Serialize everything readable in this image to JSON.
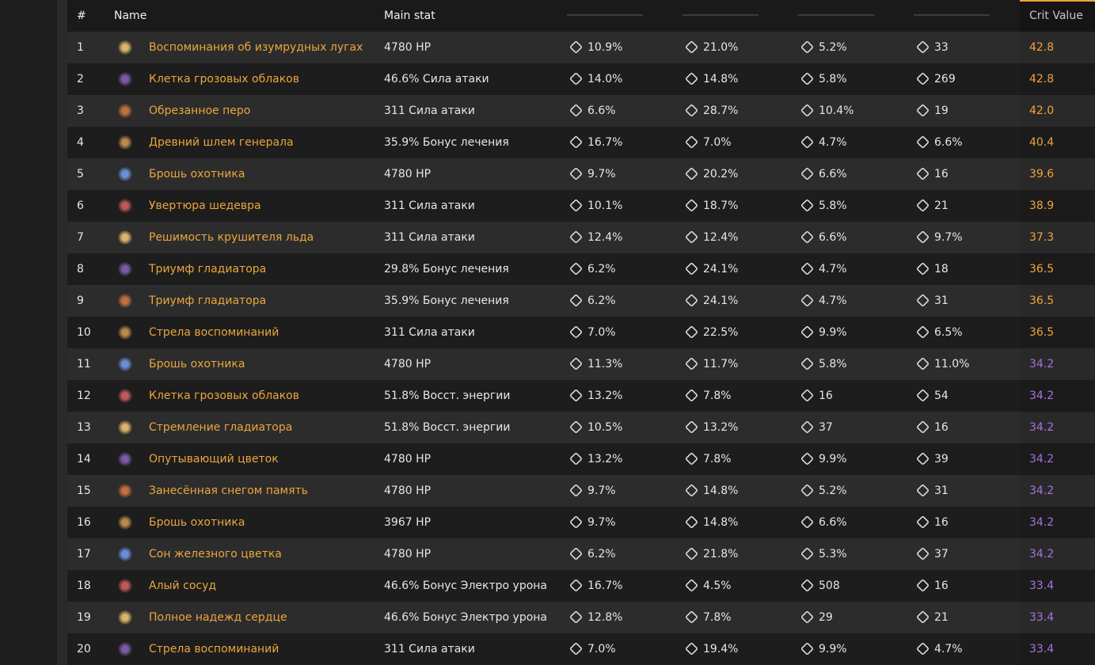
{
  "table": {
    "headers": {
      "num": "#",
      "name": "Name",
      "main": "Main stat",
      "cv": "Crit Value"
    },
    "rows": [
      {
        "num": 1,
        "name": "Воспоминания об изумрудных лугах",
        "main": "4780 HP",
        "subs": [
          "10.9%",
          "21.0%",
          "5.2%",
          "33"
        ],
        "cv": "42.8",
        "cv_color": "#f0a33a"
      },
      {
        "num": 2,
        "name": "Клетка грозовых облаков",
        "main": "46.6% Сила атаки",
        "subs": [
          "14.0%",
          "14.8%",
          "5.8%",
          "269"
        ],
        "cv": "42.8",
        "cv_color": "#f0a33a"
      },
      {
        "num": 3,
        "name": "Обрезанное перо",
        "main": "311 Сила атаки",
        "subs": [
          "6.6%",
          "28.7%",
          "10.4%",
          "19"
        ],
        "cv": "42.0",
        "cv_color": "#f0a33a"
      },
      {
        "num": 4,
        "name": "Древний шлем генерала",
        "main": "35.9% Бонус лечения",
        "subs": [
          "16.7%",
          "7.0%",
          "4.7%",
          "6.6%"
        ],
        "cv": "40.4",
        "cv_color": "#f0a33a"
      },
      {
        "num": 5,
        "name": "Брошь охотника",
        "main": "4780 HP",
        "subs": [
          "9.7%",
          "20.2%",
          "6.6%",
          "16"
        ],
        "cv": "39.6",
        "cv_color": "#f0a33a"
      },
      {
        "num": 6,
        "name": "Увертюра шедевра",
        "main": "311 Сила атаки",
        "subs": [
          "10.1%",
          "18.7%",
          "5.8%",
          "21"
        ],
        "cv": "38.9",
        "cv_color": "#f0a33a"
      },
      {
        "num": 7,
        "name": "Решимость крушителя льда",
        "main": "311 Сила атаки",
        "subs": [
          "12.4%",
          "12.4%",
          "6.6%",
          "9.7%"
        ],
        "cv": "37.3",
        "cv_color": "#f0a33a"
      },
      {
        "num": 8,
        "name": "Триумф гладиатора",
        "main": "29.8% Бонус лечения",
        "subs": [
          "6.2%",
          "24.1%",
          "4.7%",
          "18"
        ],
        "cv": "36.5",
        "cv_color": "#f0a33a"
      },
      {
        "num": 9,
        "name": "Триумф гладиатора",
        "main": "35.9% Бонус лечения",
        "subs": [
          "6.2%",
          "24.1%",
          "4.7%",
          "31"
        ],
        "cv": "36.5",
        "cv_color": "#f0a33a"
      },
      {
        "num": 10,
        "name": "Стрела воспоминаний",
        "main": "311 Сила атаки",
        "subs": [
          "7.0%",
          "22.5%",
          "9.9%",
          "6.5%"
        ],
        "cv": "36.5",
        "cv_color": "#f0a33a"
      },
      {
        "num": 11,
        "name": "Брошь охотника",
        "main": "4780 HP",
        "subs": [
          "11.3%",
          "11.7%",
          "5.8%",
          "11.0%"
        ],
        "cv": "34.2",
        "cv_color": "#a970e6"
      },
      {
        "num": 12,
        "name": "Клетка грозовых облаков",
        "main": "51.8% Восст. энергии",
        "subs": [
          "13.2%",
          "7.8%",
          "16",
          "54"
        ],
        "cv": "34.2",
        "cv_color": "#a970e6"
      },
      {
        "num": 13,
        "name": "Стремление гладиатора",
        "main": "51.8% Восст. энергии",
        "subs": [
          "10.5%",
          "13.2%",
          "37",
          "16"
        ],
        "cv": "34.2",
        "cv_color": "#a970e6"
      },
      {
        "num": 14,
        "name": "Опутывающий цветок",
        "main": "4780 HP",
        "subs": [
          "13.2%",
          "7.8%",
          "9.9%",
          "39"
        ],
        "cv": "34.2",
        "cv_color": "#a970e6"
      },
      {
        "num": 15,
        "name": "Занесённая снегом память",
        "main": "4780 HP",
        "subs": [
          "9.7%",
          "14.8%",
          "5.2%",
          "31"
        ],
        "cv": "34.2",
        "cv_color": "#a970e6"
      },
      {
        "num": 16,
        "name": "Брошь охотника",
        "main": "3967 HP",
        "subs": [
          "9.7%",
          "14.8%",
          "6.6%",
          "16"
        ],
        "cv": "34.2",
        "cv_color": "#a970e6"
      },
      {
        "num": 17,
        "name": "Сон железного цветка",
        "main": "4780 HP",
        "subs": [
          "6.2%",
          "21.8%",
          "5.3%",
          "37"
        ],
        "cv": "34.2",
        "cv_color": "#a970e6"
      },
      {
        "num": 18,
        "name": "Алый сосуд",
        "main": "46.6% Бонус Электро урона",
        "subs": [
          "16.7%",
          "4.5%",
          "508",
          "16"
        ],
        "cv": "33.4",
        "cv_color": "#a970e6"
      },
      {
        "num": 19,
        "name": "Полное надежд сердце",
        "main": "46.6% Бонус Электро урона",
        "subs": [
          "12.8%",
          "7.8%",
          "29",
          "21"
        ],
        "cv": "33.4",
        "cv_color": "#a970e6"
      },
      {
        "num": 20,
        "name": "Стрела воспоминаний",
        "main": "311 Сила атаки",
        "subs": [
          "7.0%",
          "19.4%",
          "9.9%",
          "4.7%"
        ],
        "cv": "33.4",
        "cv_color": "#a970e6"
      }
    ]
  }
}
